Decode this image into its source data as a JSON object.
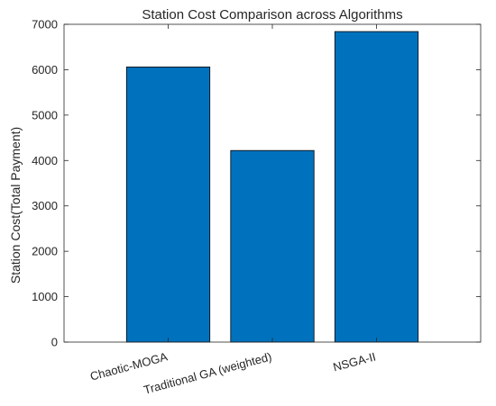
{
  "chart_data": {
    "type": "bar",
    "title": "Station Cost Comparison across Algorithms",
    "xlabel": "",
    "ylabel": "Station Cost(Total Payment)",
    "categories": [
      "Chaotic-MOGA",
      "Traditional GA (weighted)",
      "NSGA-II"
    ],
    "values": [
      6060,
      4220,
      6840
    ],
    "ylim": [
      0,
      7000
    ],
    "yticks": [
      0,
      1000,
      2000,
      3000,
      4000,
      5000,
      6000,
      7000
    ],
    "ytick_labels": [
      "0",
      "1000",
      "2000",
      "3000",
      "4000",
      "5000",
      "6000",
      "7000"
    ],
    "bar_color": "#0072BD",
    "grid": false,
    "legend": "none"
  }
}
